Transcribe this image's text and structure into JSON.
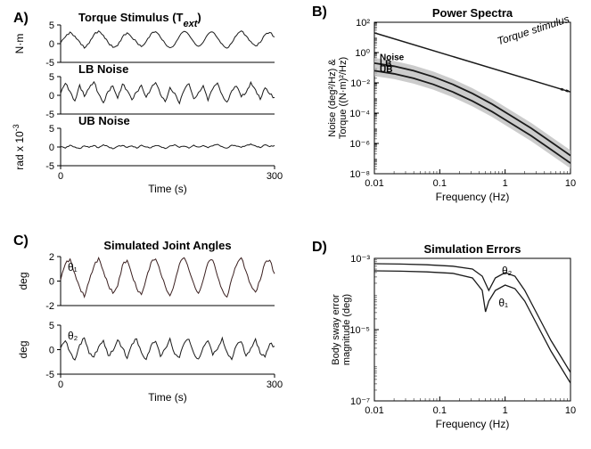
{
  "colors": {
    "bg": "#ffffff",
    "axis": "#000000",
    "trace": "#1a1a1a",
    "trace_theta1": "#3a1f1f",
    "grey_band": "#bfbfbf",
    "text": "#000000"
  },
  "panelA": {
    "label": "A)",
    "title_torque": "Torque Stimulus (T",
    "title_torque_sub": "ext",
    "title_torque_end": ")",
    "title_lb": "LB Noise",
    "title_ub": "UB Noise",
    "ylabel_torque": "N·m",
    "ylabel_rad": "rad x 10",
    "ylabel_rad_sup": "-3",
    "xlabel": "Time (s)",
    "xlim": [
      0,
      300
    ],
    "xticks": [
      0,
      300
    ],
    "torque": {
      "ylim": [
        -5,
        5
      ],
      "yticks": [
        -5,
        0,
        5
      ],
      "y": [
        0.2,
        1.8,
        3.1,
        2.0,
        0.5,
        -1.2,
        0.1,
        2.4,
        3.4,
        2.2,
        0.3,
        -1.0,
        -0.5,
        1.8,
        2.9,
        1.6,
        0.4,
        -0.8,
        0.6,
        2.6,
        3.2,
        1.7,
        0.0,
        -1.1,
        -0.2,
        2.0,
        3.3,
        2.3,
        0.5,
        -0.7,
        0.4,
        2.5,
        3.1,
        1.5,
        -0.1,
        -1.2,
        0.2,
        2.2,
        3.4,
        2.1,
        0.6,
        -0.6,
        0.3,
        2.4,
        3.0,
        1.8
      ]
    },
    "lb": {
      "ylim": [
        -5,
        5
      ],
      "yticks": [
        -5,
        0,
        5
      ],
      "y": [
        0.5,
        3.2,
        1.0,
        -1.5,
        2.8,
        -0.3,
        1.9,
        3.6,
        0.4,
        -2.0,
        1.1,
        2.5,
        -0.8,
        3.0,
        1.3,
        -1.2,
        0.9,
        2.7,
        -0.5,
        1.8,
        3.4,
        0.2,
        -1.7,
        2.1,
        0.6,
        -2.2,
        1.4,
        3.1,
        -0.9,
        0.8,
        2.6,
        -1.4,
        1.7,
        3.3,
        0.1,
        -1.8,
        1.2,
        2.4,
        -0.4,
        0.7,
        3.5,
        1.5,
        -1.1,
        2.0,
        0.3,
        -0.6
      ]
    },
    "ub": {
      "ylim": [
        -5,
        5
      ],
      "yticks": [
        -5,
        0,
        5
      ],
      "y": [
        0.1,
        -0.3,
        0.5,
        0.0,
        -0.4,
        0.3,
        -0.1,
        0.4,
        -0.2,
        0.6,
        0.1,
        -0.5,
        0.2,
        0.4,
        -0.1,
        0.3,
        -0.3,
        0.5,
        0.0,
        -0.2,
        0.4,
        0.1,
        -0.4,
        0.3,
        0.6,
        -0.1,
        0.2,
        -0.3,
        0.5,
        0.0,
        0.4,
        -0.2,
        0.3,
        0.7,
        0.1,
        -0.3,
        0.5,
        0.2,
        -0.1,
        0.4,
        0.8,
        0.3,
        -0.2,
        0.6,
        0.1,
        0.4
      ]
    }
  },
  "panelB": {
    "label": "B)",
    "title": "Power Spectra",
    "xlabel": "Frequency (Hz)",
    "ylabel_l1": "Noise (deg²/Hz) &",
    "ylabel_l2": "Torque ((N·m)²/Hz)",
    "xlim_log": [
      -2,
      1
    ],
    "ylim_log": [
      -8,
      2
    ],
    "xticks": [
      -2,
      -1,
      0,
      1
    ],
    "xticklabels": [
      "0.01",
      "0.1",
      "1",
      "10"
    ],
    "yticks": [
      -8,
      -6,
      -4,
      -2,
      0,
      2
    ],
    "yticklabels": [
      "10⁻⁸",
      "10⁻⁶",
      "10⁻⁴",
      "10⁻²",
      "10⁰",
      "10²"
    ],
    "legend_noise": "Noise",
    "legend_lb": "LB",
    "legend_ub": "UB",
    "label_torque": "Torque stimulus",
    "stimulus_line": [
      [
        -2,
        1.3
      ],
      [
        1,
        -2.6
      ]
    ],
    "lb_line": [
      [
        -2,
        -0.7
      ],
      [
        -1.7,
        -0.9
      ],
      [
        -1.4,
        -1.2
      ],
      [
        -1.1,
        -1.6
      ],
      [
        -0.8,
        -2.1
      ],
      [
        -0.5,
        -2.7
      ],
      [
        -0.2,
        -3.4
      ],
      [
        0.1,
        -4.2
      ],
      [
        0.4,
        -5.0
      ],
      [
        0.7,
        -5.9
      ],
      [
        1.0,
        -6.8
      ]
    ],
    "ub_line": [
      [
        -2,
        -1.2
      ],
      [
        -1.7,
        -1.4
      ],
      [
        -1.4,
        -1.7
      ],
      [
        -1.1,
        -2.1
      ],
      [
        -0.8,
        -2.6
      ],
      [
        -0.5,
        -3.2
      ],
      [
        -0.2,
        -3.9
      ],
      [
        0.1,
        -4.7
      ],
      [
        0.4,
        -5.5
      ],
      [
        0.7,
        -6.4
      ],
      [
        1.0,
        -7.3
      ]
    ],
    "band_half_width": 0.35
  },
  "panelC": {
    "label": "C)",
    "title": "Simulated Joint Angles",
    "xlabel": "Time (s)",
    "ylabel": "deg",
    "xlim": [
      0,
      300
    ],
    "xticks": [
      0,
      300
    ],
    "theta1_label": "θ₁",
    "theta2_label": "θ₂",
    "theta1": {
      "ylim": [
        -2,
        2
      ],
      "yticks": [
        -2,
        0,
        2
      ],
      "y": [
        0.1,
        1.4,
        1.8,
        0.6,
        -0.5,
        -1.3,
        0.0,
        1.2,
        1.9,
        0.8,
        -0.3,
        -1.0,
        -0.4,
        1.3,
        1.7,
        0.5,
        -0.6,
        -1.1,
        0.2,
        1.5,
        1.8,
        0.7,
        -0.4,
        -1.2,
        -0.1,
        1.4,
        1.9,
        0.9,
        -0.2,
        -1.0,
        0.1,
        1.5,
        1.7,
        0.4,
        -0.7,
        -1.3,
        0.2,
        1.3,
        1.9,
        0.8,
        -0.3,
        -0.9,
        0.1,
        1.5,
        1.7,
        0.6
      ]
    },
    "theta2": {
      "ylim": [
        -5,
        5
      ],
      "yticks": [
        -5,
        0,
        5
      ],
      "y": [
        0.3,
        1.8,
        -0.5,
        -2.1,
        1.0,
        2.4,
        -0.8,
        -1.5,
        0.6,
        1.9,
        -1.2,
        -0.3,
        2.0,
        0.4,
        -1.8,
        1.1,
        2.2,
        -0.6,
        -2.0,
        0.8,
        1.7,
        -1.4,
        0.2,
        2.3,
        -0.9,
        -1.6,
        1.3,
        2.1,
        -0.7,
        -1.9,
        0.5,
        1.8,
        -1.1,
        0.1,
        2.4,
        -0.5,
        -2.0,
        0.9,
        1.6,
        -1.3,
        0.3,
        2.2,
        -0.8,
        -1.5,
        1.2,
        0.7
      ]
    }
  },
  "panelD": {
    "label": "D)",
    "title": "Simulation Errors",
    "xlabel": "Frequency (Hz)",
    "ylabel_l1": "Body sway error",
    "ylabel_l2": "magnitude (deg)",
    "xlim_log": [
      -2,
      1
    ],
    "ylim_log": [
      -7,
      -3
    ],
    "xticks": [
      -2,
      -1,
      0,
      1
    ],
    "xticklabels": [
      "0.01",
      "0.1",
      "1",
      "10"
    ],
    "yticks": [
      -7,
      -5,
      -3
    ],
    "yticklabels": [
      "10⁻⁷",
      "10⁻⁵",
      "10⁻³"
    ],
    "theta1_label": "θ₁",
    "theta2_label": "θ₂",
    "theta1_line": [
      [
        -2,
        -3.35
      ],
      [
        -1.6,
        -3.36
      ],
      [
        -1.2,
        -3.38
      ],
      [
        -0.8,
        -3.42
      ],
      [
        -0.5,
        -3.55
      ],
      [
        -0.35,
        -3.9
      ],
      [
        -0.3,
        -4.5
      ],
      [
        -0.25,
        -4.2
      ],
      [
        -0.15,
        -3.9
      ],
      [
        0.0,
        -3.75
      ],
      [
        0.15,
        -3.85
      ],
      [
        0.3,
        -4.2
      ],
      [
        0.5,
        -4.9
      ],
      [
        0.7,
        -5.6
      ],
      [
        0.9,
        -6.2
      ],
      [
        1.0,
        -6.5
      ]
    ],
    "theta2_line": [
      [
        -2,
        -3.15
      ],
      [
        -1.6,
        -3.16
      ],
      [
        -1.2,
        -3.18
      ],
      [
        -0.8,
        -3.22
      ],
      [
        -0.5,
        -3.3
      ],
      [
        -0.35,
        -3.5
      ],
      [
        -0.25,
        -3.9
      ],
      [
        -0.15,
        -3.55
      ],
      [
        0.0,
        -3.4
      ],
      [
        0.15,
        -3.5
      ],
      [
        0.3,
        -3.9
      ],
      [
        0.5,
        -4.6
      ],
      [
        0.7,
        -5.3
      ],
      [
        0.9,
        -5.9
      ],
      [
        1.0,
        -6.2
      ]
    ]
  },
  "fonts": {
    "panel_label": 16,
    "title": 13,
    "axis_label": 12,
    "tick": 11,
    "legend": 10,
    "annotation": 12
  }
}
